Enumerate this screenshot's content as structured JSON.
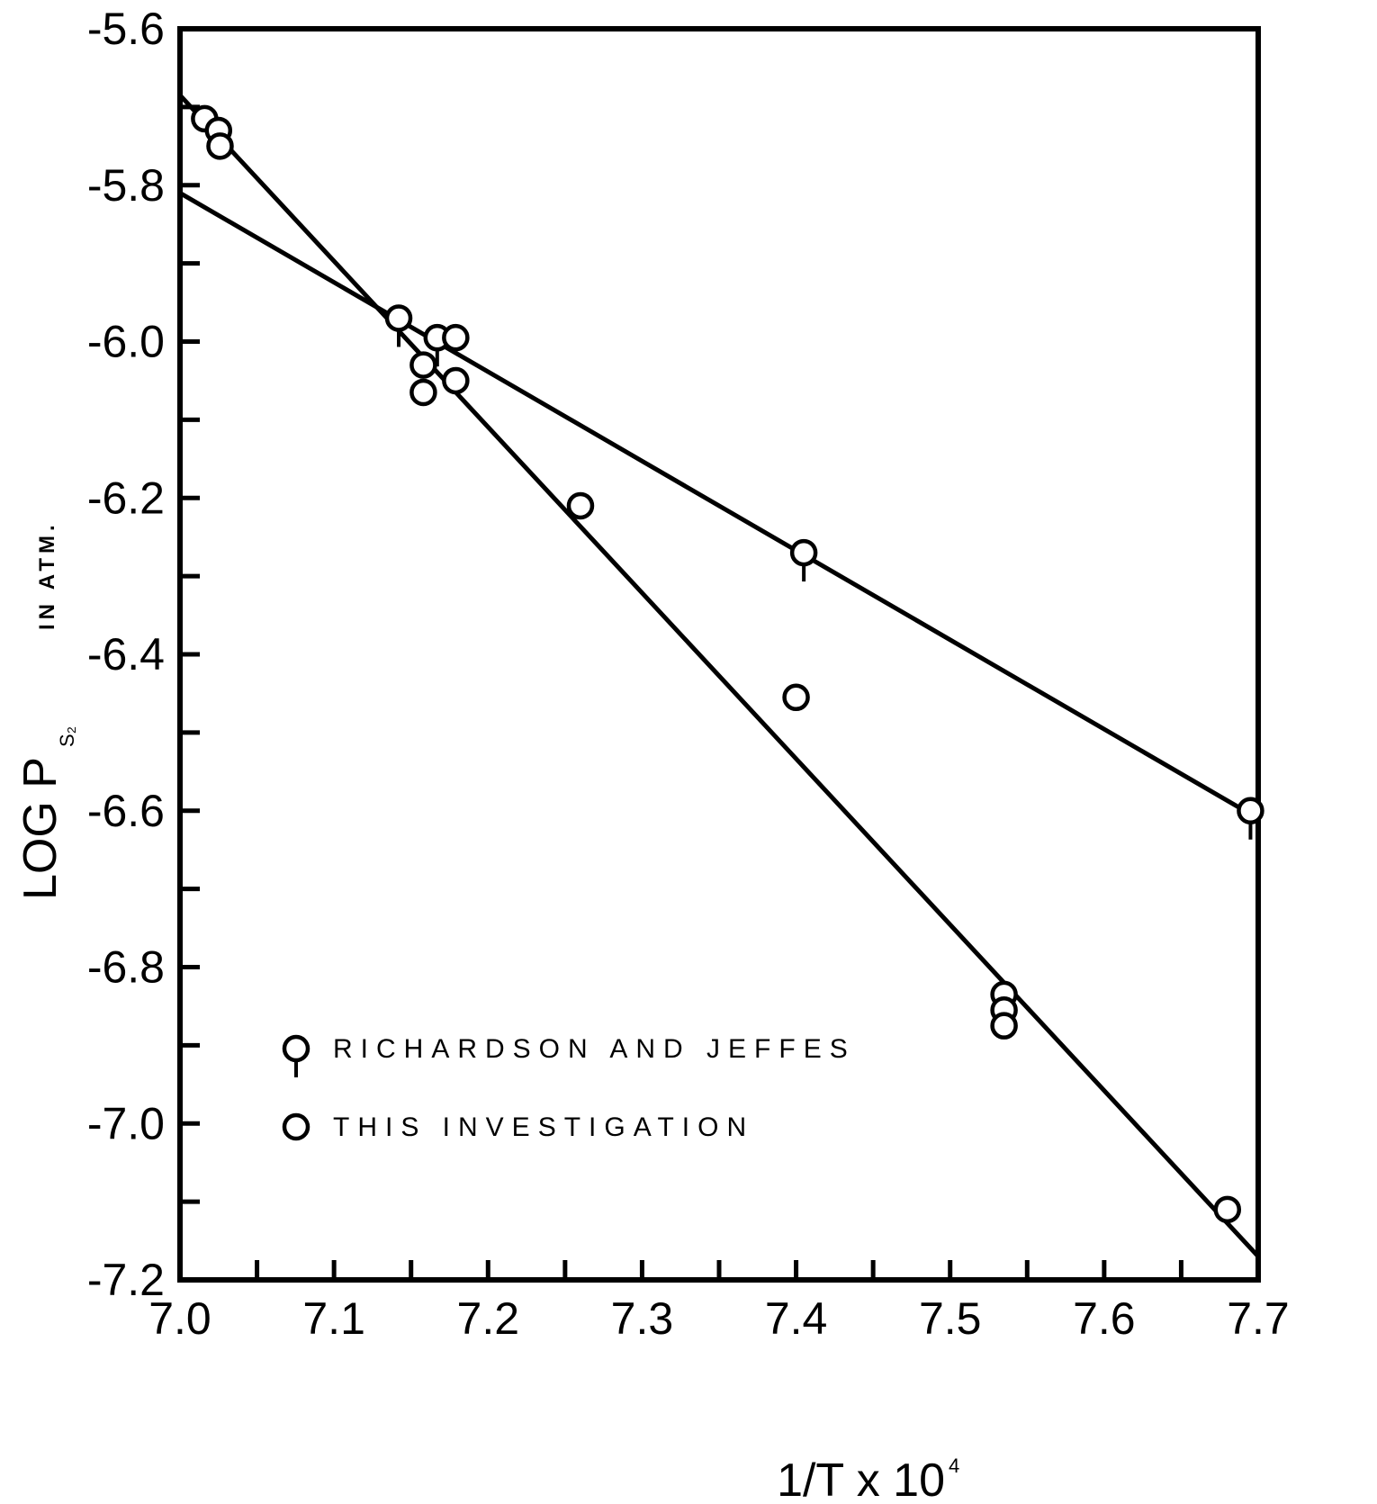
{
  "chart_data": {
    "type": "scatter",
    "xlabel": "1/T x 10",
    "xlabel_exp": "4",
    "ylabel": "LOG P",
    "ylabel_sub": "S₂",
    "ylabel_unit": "IN ATM.",
    "xlim": [
      7.0,
      7.7
    ],
    "ylim": [
      -7.2,
      -5.6
    ],
    "x_ticks": [
      7.0,
      7.05,
      7.1,
      7.15,
      7.2,
      7.25,
      7.3,
      7.35,
      7.4,
      7.45,
      7.5,
      7.55,
      7.6,
      7.65,
      7.7
    ],
    "x_tick_labels": [
      "7.0",
      "7.1",
      "7.2",
      "7.3",
      "7.4",
      "7.5",
      "7.6",
      "7.7"
    ],
    "x_tick_label_values": [
      7.0,
      7.1,
      7.2,
      7.3,
      7.4,
      7.5,
      7.6,
      7.7
    ],
    "y_ticks": [
      -5.6,
      -5.7,
      -5.8,
      -5.9,
      -6.0,
      -6.1,
      -6.2,
      -6.3,
      -6.4,
      -6.5,
      -6.6,
      -6.7,
      -6.8,
      -6.9,
      -7.0,
      -7.1,
      -7.2
    ],
    "y_tick_labels": [
      "-5.6",
      "-5.8",
      "-6.0",
      "-6.2",
      "-6.4",
      "-6.6",
      "-6.8",
      "-7.0",
      "-7.2"
    ],
    "y_tick_label_values": [
      -5.6,
      -5.8,
      -6.0,
      -6.2,
      -6.4,
      -6.6,
      -6.8,
      -7.0,
      -7.2
    ],
    "grid": false,
    "legend_position": "bottom-left",
    "series": [
      {
        "name": "RICHARDSON AND JEFFES",
        "marker": "circle-with-tail",
        "points": [
          {
            "x": 7.142,
            "y": -5.97
          },
          {
            "x": 7.167,
            "y": -5.995
          },
          {
            "x": 7.405,
            "y": -6.27
          },
          {
            "x": 7.695,
            "y": -6.6
          }
        ],
        "fit_line": {
          "x": [
            7.0,
            7.7
          ],
          "y": [
            -5.81,
            -6.61
          ]
        }
      },
      {
        "name": "THIS INVESTIGATION",
        "marker": "circle",
        "points": [
          {
            "x": 7.016,
            "y": -5.715
          },
          {
            "x": 7.025,
            "y": -5.73
          },
          {
            "x": 7.026,
            "y": -5.75
          },
          {
            "x": 7.158,
            "y": -6.03
          },
          {
            "x": 7.158,
            "y": -6.065
          },
          {
            "x": 7.179,
            "y": -5.995
          },
          {
            "x": 7.179,
            "y": -6.05
          },
          {
            "x": 7.26,
            "y": -6.21
          },
          {
            "x": 7.4,
            "y": -6.455
          },
          {
            "x": 7.535,
            "y": -6.835
          },
          {
            "x": 7.535,
            "y": -6.855
          },
          {
            "x": 7.535,
            "y": -6.875
          },
          {
            "x": 7.68,
            "y": -7.11
          }
        ],
        "fit_line": {
          "x": [
            7.0,
            7.7
          ],
          "y": [
            -5.685,
            -7.17
          ]
        }
      }
    ]
  }
}
